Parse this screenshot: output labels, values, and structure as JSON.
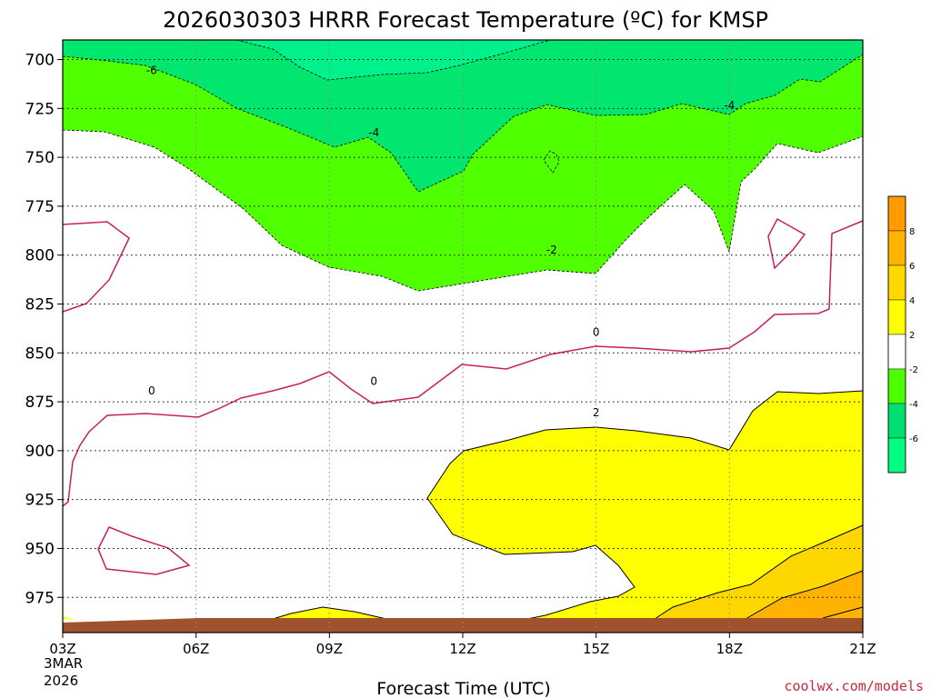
{
  "chart_data": {
    "type": "contour",
    "title": "2026030303 HRRR Forecast Temperature (ºC) for KMSP",
    "xlabel": "Forecast Time (UTC)",
    "x_tick_labels": [
      "03Z",
      "06Z",
      "09Z",
      "12Z",
      "15Z",
      "18Z",
      "21Z"
    ],
    "x_start_date": [
      "3MAR",
      "2026"
    ],
    "y_tick_labels": [
      "700",
      "725",
      "750",
      "775",
      "800",
      "825",
      "850",
      "875",
      "900",
      "925",
      "950",
      "975"
    ],
    "y_range": [
      690,
      993
    ],
    "y_inverted": true,
    "contour_labels": [
      {
        "text": "-6",
        "x": 5,
        "y": 705
      },
      {
        "text": "-4",
        "x": 10,
        "y": 737
      },
      {
        "text": "-4",
        "x": 18,
        "y": 723
      },
      {
        "text": "-2",
        "x": 14,
        "y": 797
      },
      {
        "text": "0",
        "x": 5,
        "y": 869
      },
      {
        "text": "0",
        "x": 10,
        "y": 864
      },
      {
        "text": "0",
        "x": 15,
        "y": 839
      },
      {
        "text": "2",
        "x": 15,
        "y": 880
      }
    ],
    "colorbar": {
      "labels": [
        "8",
        "6",
        "4",
        "2",
        "-2",
        "-4",
        "-6"
      ],
      "colors": [
        "#ff9a00",
        "#ffb400",
        "#ffd800",
        "#ffff00",
        "#ffffff",
        "#4bff00",
        "#00e070",
        "#00ff80"
      ]
    },
    "colors": {
      "minus6": "#00f08c",
      "minus4": "#00e66e",
      "minus2": "#50ff00",
      "warm2": "#ffff00",
      "warm4": "#ffd700",
      "warm6": "#ffb300",
      "terrain": "#a0522d",
      "zero_line": "#c81e64"
    }
  },
  "credit": "coolwx.com/models"
}
